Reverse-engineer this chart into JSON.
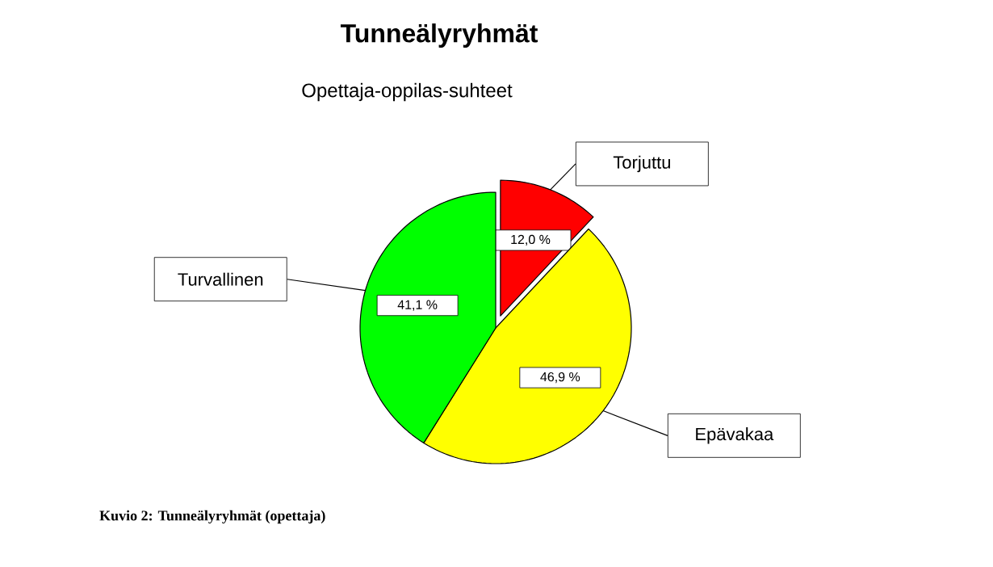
{
  "chart_data": {
    "type": "pie",
    "title": "Tunneälyryhmät",
    "subtitle": "Opettaja-oppilas-suhteet",
    "categories": [
      "Torjuttu",
      "Epävakaa",
      "Turvallinen"
    ],
    "values": [
      12.0,
      46.9,
      41.1
    ],
    "value_labels": [
      "12,0 %",
      "46,9 %",
      "41,1 %"
    ],
    "colors": [
      "#ff0000",
      "#ffff00",
      "#00ff00"
    ],
    "annotations": [
      "Kuvio 2: Tunneälyryhmät (opettaja)"
    ]
  }
}
